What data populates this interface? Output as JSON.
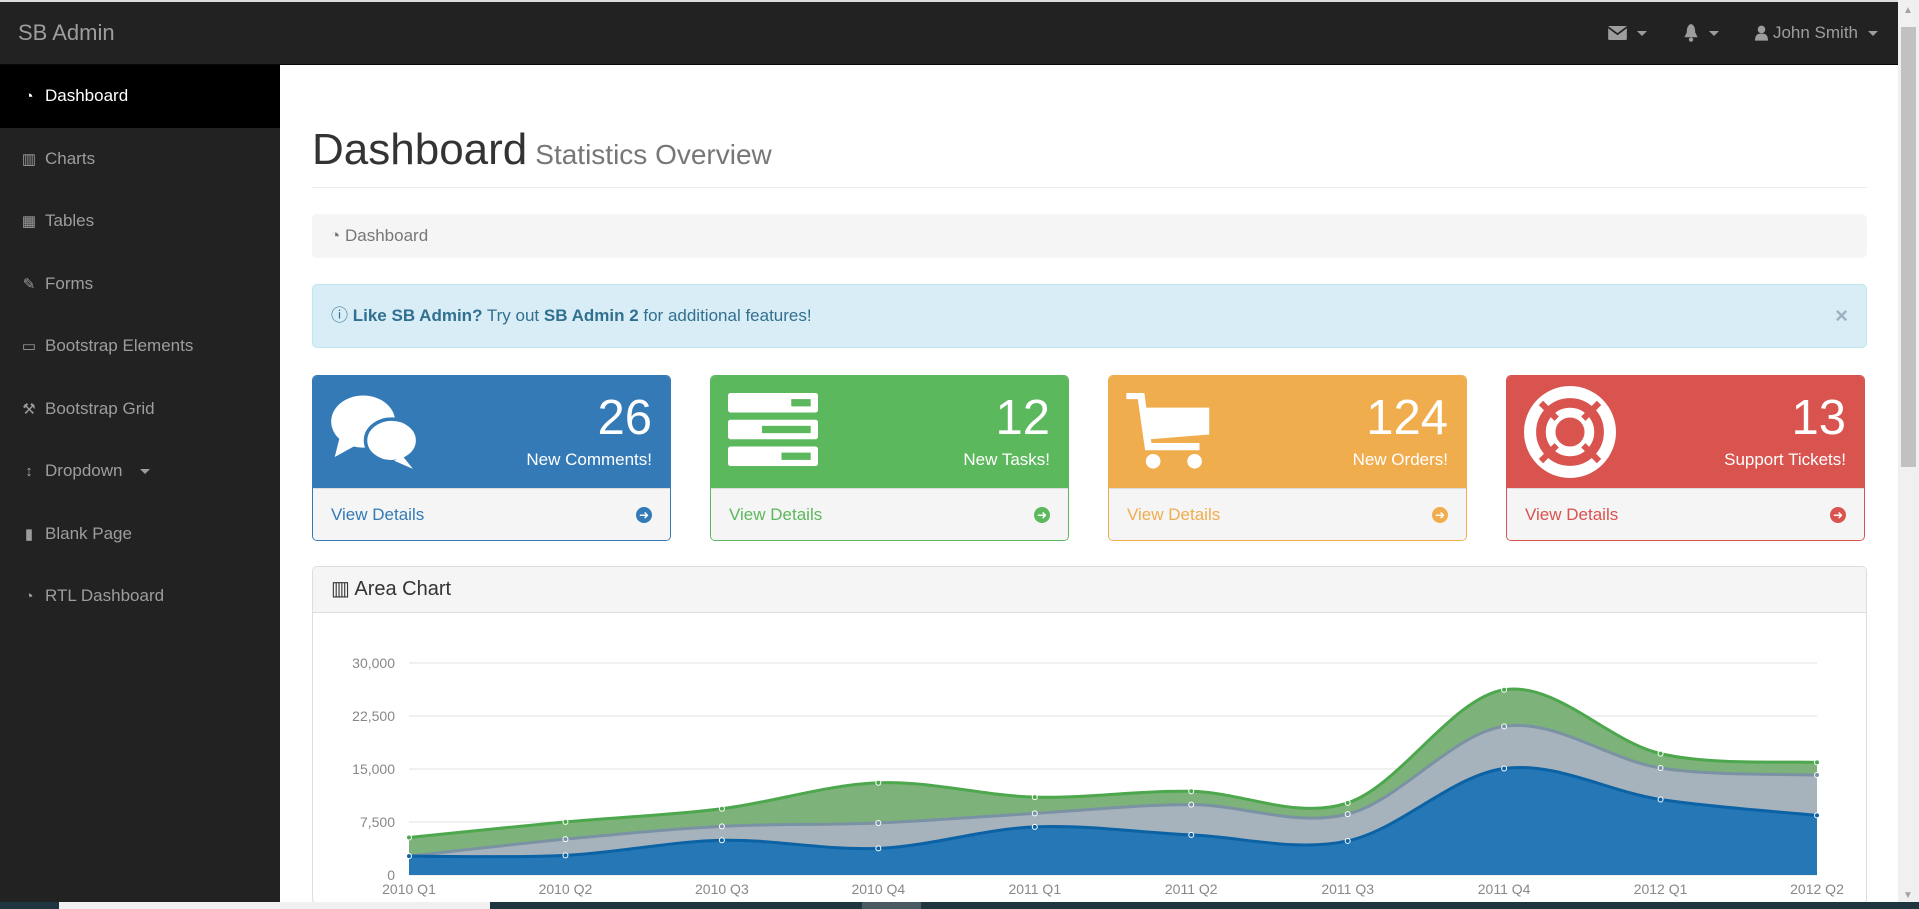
{
  "navbar": {
    "brand": "SB Admin",
    "user": "John Smith",
    "icons": [
      "envelope-icon",
      "bell-icon",
      "user-icon"
    ]
  },
  "sidebar": {
    "items": [
      {
        "label": "Dashboard",
        "icon": "dashboard-icon",
        "active": true
      },
      {
        "label": "Charts",
        "icon": "bar-chart-icon"
      },
      {
        "label": "Tables",
        "icon": "table-icon"
      },
      {
        "label": "Forms",
        "icon": "edit-icon"
      },
      {
        "label": "Bootstrap Elements",
        "icon": "desktop-icon"
      },
      {
        "label": "Bootstrap Grid",
        "icon": "wrench-icon"
      },
      {
        "label": "Dropdown",
        "icon": "arrows-v-icon"
      },
      {
        "label": "Blank Page",
        "icon": "file-icon"
      },
      {
        "label": "RTL Dashboard",
        "icon": "dashboard-icon"
      }
    ]
  },
  "header": {
    "title": "Dashboard",
    "subtitle": "Statistics Overview"
  },
  "breadcrumb": {
    "label": "Dashboard"
  },
  "alert": {
    "strong": "Like SB Admin?",
    "text1": " Try out ",
    "link": "SB Admin 2",
    "text2": " for additional features!",
    "close": "×"
  },
  "panels": [
    {
      "value": "26",
      "label": "New Comments!",
      "link": "View Details",
      "color": "#337ab7",
      "icon": "comments-icon"
    },
    {
      "value": "12",
      "label": "New Tasks!",
      "link": "View Details",
      "color": "#5cb85c",
      "icon": "tasks-icon"
    },
    {
      "value": "124",
      "label": "New Orders!",
      "link": "View Details",
      "color": "#f0ad4e",
      "icon": "shopping-cart-icon"
    },
    {
      "value": "13",
      "label": "Support Tickets!",
      "link": "View Details",
      "color": "#d9534f",
      "icon": "support-icon"
    }
  ],
  "chart_data": {
    "type": "area",
    "title": "Area Chart",
    "stacked": true,
    "x": [
      "2010 Q1",
      "2010 Q2",
      "2010 Q3",
      "2010 Q4",
      "2011 Q1",
      "2011 Q2",
      "2011 Q3",
      "2011 Q4",
      "2012 Q1",
      "2012 Q2"
    ],
    "series": [
      {
        "values": [
          2666,
          2778,
          4912,
          3767,
          6810,
          5670,
          4820,
          15073,
          10687,
          8432
        ],
        "color": "#0b62a4",
        "fill": "#2577b5"
      },
      {
        "values": [
          0,
          2294,
          1969,
          3597,
          1914,
          4293,
          3795,
          5967,
          4460,
          5713
        ],
        "color": "#7a92a3",
        "fill": "#a7b3bc"
      },
      {
        "values": [
          2647,
          2441,
          2501,
          5689,
          2293,
          1881,
          1588,
          5175,
          2028,
          1791
        ],
        "color": "#4da74d",
        "fill": "#7db37a"
      }
    ],
    "yticks": [
      "0",
      "7,500",
      "15,000",
      "22,500",
      "30,000"
    ],
    "ylim": [
      0,
      30000
    ],
    "grid": true
  }
}
